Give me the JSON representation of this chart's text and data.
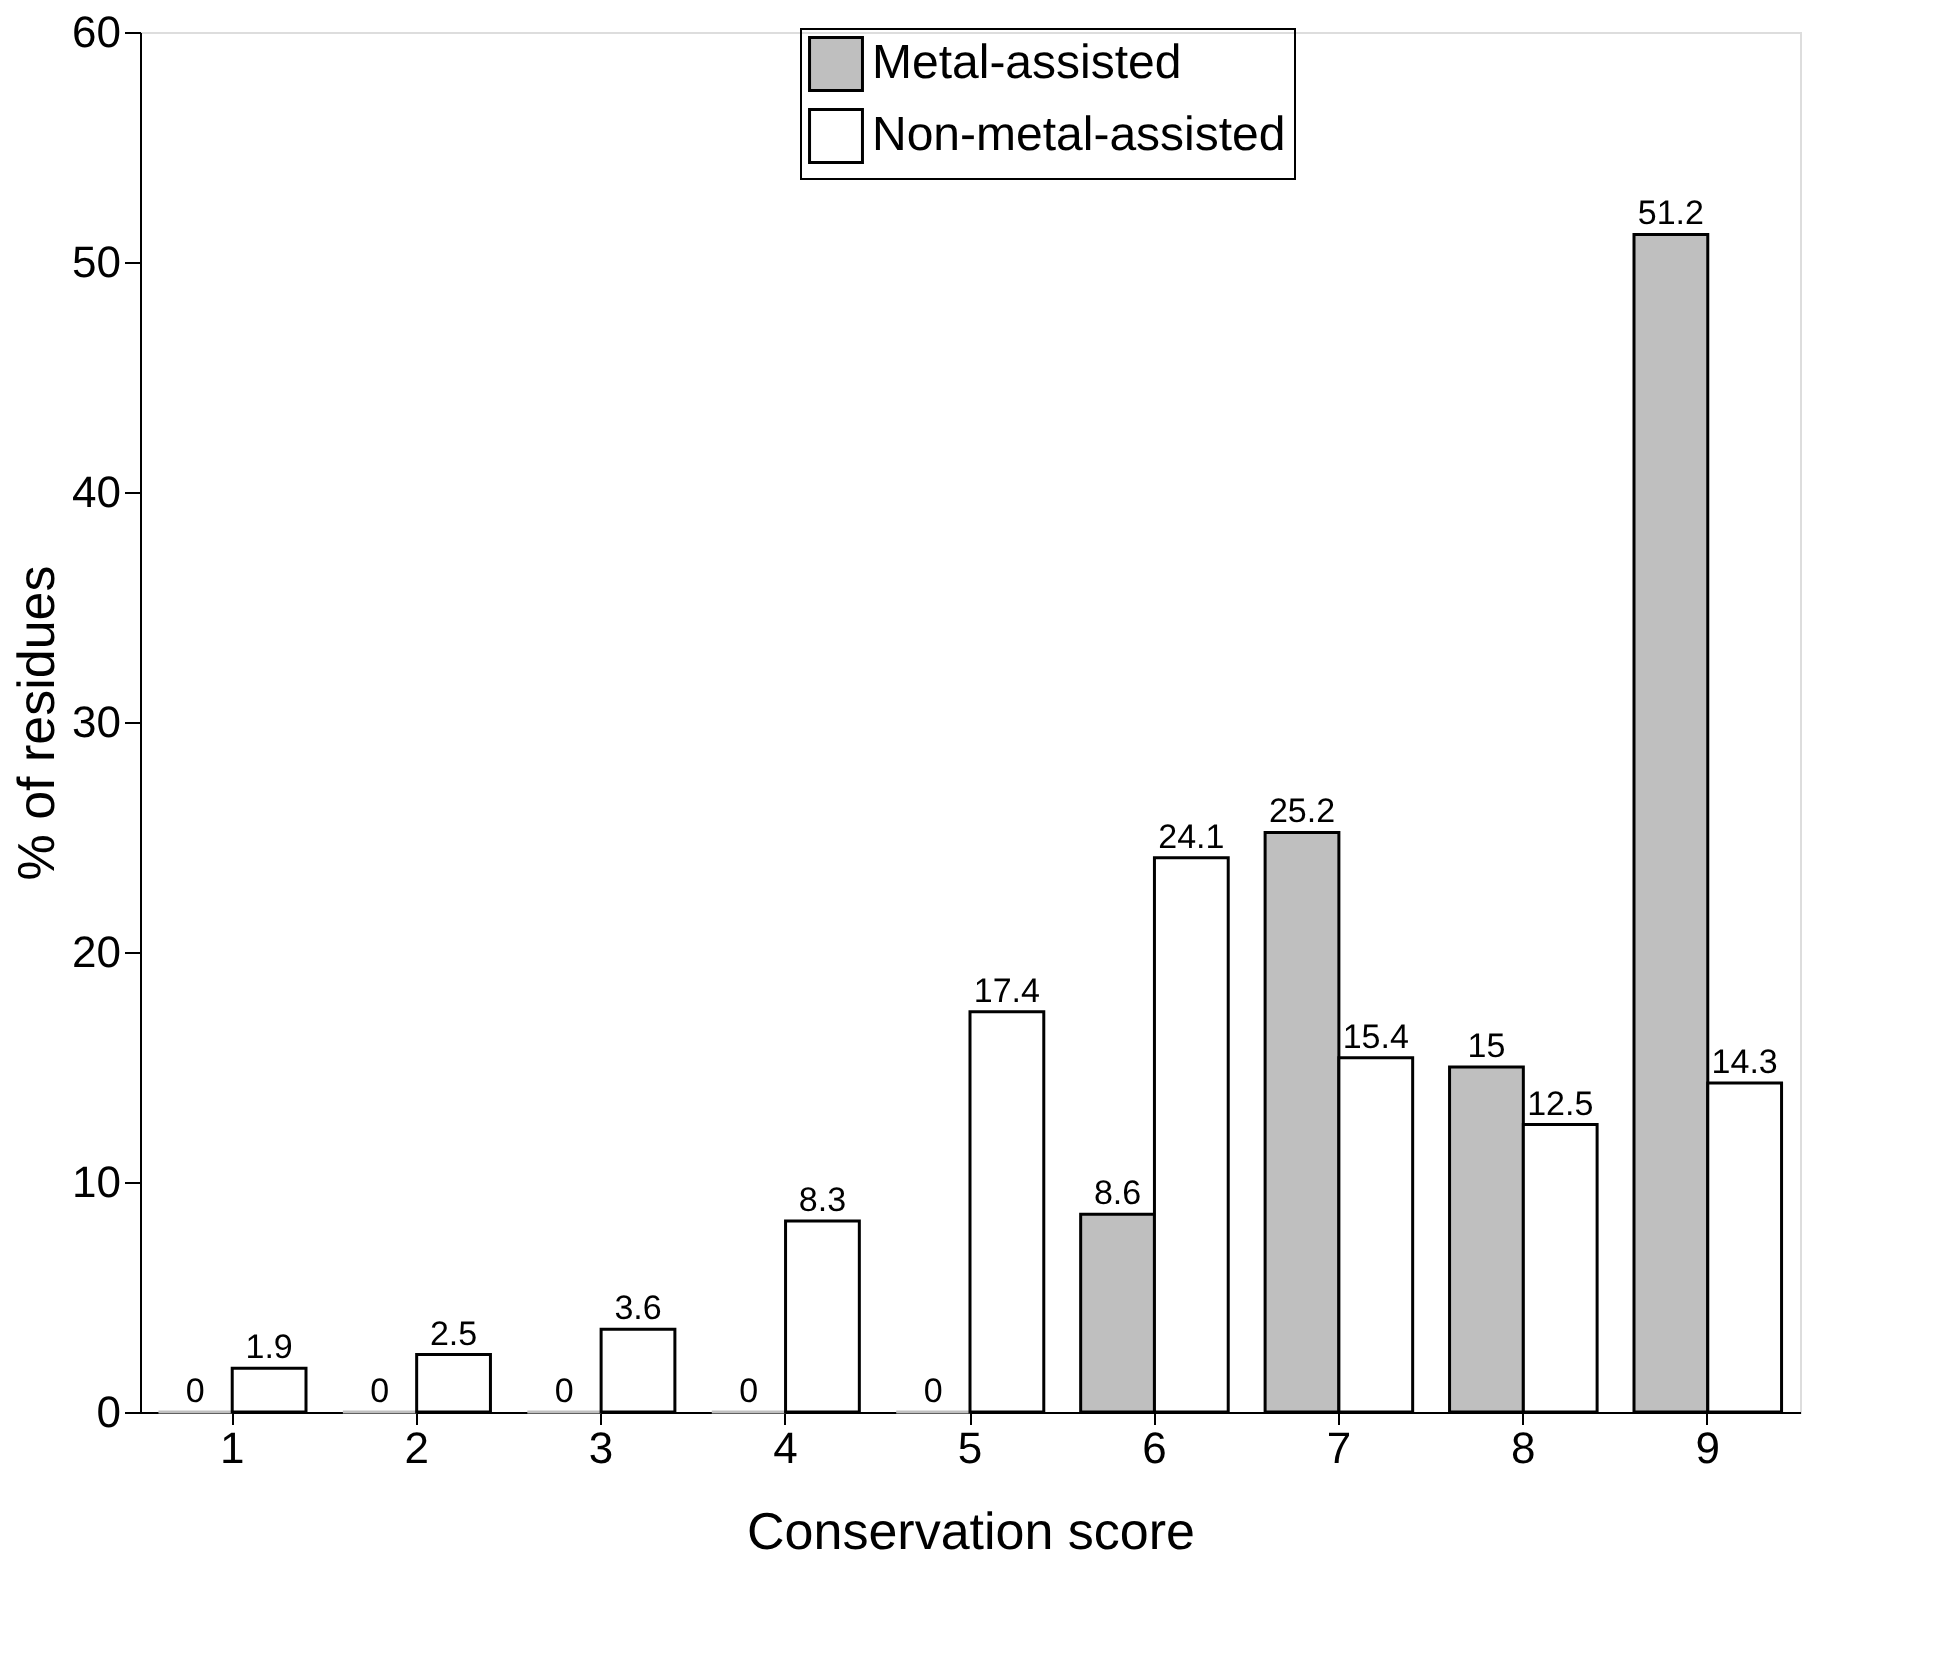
{
  "chart_data": {
    "type": "bar",
    "xlabel": "Conservation score",
    "ylabel": "% of residues",
    "categories": [
      "1",
      "2",
      "3",
      "4",
      "5",
      "6",
      "7",
      "8",
      "9"
    ],
    "series": [
      {
        "name": "Metal-assisted",
        "color": "#bfbfbf",
        "values": [
          0,
          0,
          0,
          0,
          0,
          8.6,
          25.2,
          15,
          51.2
        ]
      },
      {
        "name": "Non-metal-assisted",
        "color": "#ffffff",
        "values": [
          1.9,
          2.5,
          3.6,
          8.3,
          17.4,
          24.1,
          15.4,
          12.5,
          14.3
        ]
      }
    ],
    "ylim": [
      0,
      60
    ],
    "yticks": [
      0,
      10,
      20,
      30,
      40,
      50,
      60
    ],
    "grid": false,
    "legend": "top",
    "data_labels": true
  }
}
